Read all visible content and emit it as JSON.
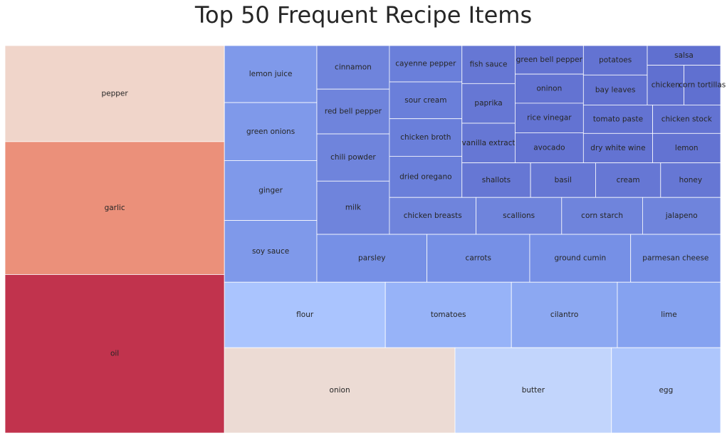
{
  "chart_data": {
    "type": "treemap",
    "title": "Top 50 Frequent Recipe Items",
    "items": [
      {
        "label": "oil",
        "value": 198,
        "color": "#c1334d"
      },
      {
        "label": "garlic",
        "value": 166,
        "color": "#eb907a"
      },
      {
        "label": "pepper",
        "value": 120,
        "color": "#f0d5ca"
      },
      {
        "label": "onion",
        "value": 112,
        "color": "#ecdbd4"
      },
      {
        "label": "butter",
        "value": 76,
        "color": "#c2d5fc"
      },
      {
        "label": "egg",
        "value": 53,
        "color": "#aec6fc"
      },
      {
        "label": "flour",
        "value": 60,
        "color": "#aac4fe"
      },
      {
        "label": "tomatoes",
        "value": 47,
        "color": "#97b3f8"
      },
      {
        "label": "cilantro",
        "value": 39.5,
        "color": "#8ca8f2"
      },
      {
        "label": "lime",
        "value": 38.5,
        "color": "#85a2f0"
      },
      {
        "label": "soy sauce",
        "value": 32.5,
        "color": "#7f99ea"
      },
      {
        "label": "ginger",
        "value": 31.5,
        "color": "#7f99ea"
      },
      {
        "label": "green onions",
        "value": 30.5,
        "color": "#7f99ea"
      },
      {
        "label": "lemon juice",
        "value": 30,
        "color": "#7f99ea"
      },
      {
        "label": "parsley",
        "value": 30,
        "color": "#7690e6"
      },
      {
        "label": "carrots",
        "value": 28,
        "color": "#7690e6"
      },
      {
        "label": "ground cumin",
        "value": 27.5,
        "color": "#7690e6"
      },
      {
        "label": "parmesan cheese",
        "value": 24.5,
        "color": "#7690e6"
      },
      {
        "label": "milk",
        "value": 22,
        "color": "#6f84dc"
      },
      {
        "label": "chili powder",
        "value": 19.5,
        "color": "#6f84dc"
      },
      {
        "label": "red bell pepper",
        "value": 18.5,
        "color": "#6f84dc"
      },
      {
        "label": "cinnamon",
        "value": 18,
        "color": "#6f84dc"
      },
      {
        "label": "chicken breasts",
        "value": 18.2,
        "color": "#6f84dc"
      },
      {
        "label": "scallions",
        "value": 18,
        "color": "#6f84dc"
      },
      {
        "label": "corn starch",
        "value": 17,
        "color": "#6f84dc"
      },
      {
        "label": "jalapeno",
        "value": 16.4,
        "color": "#6f84dc"
      },
      {
        "label": "dried oregano",
        "value": 17,
        "color": "#6a7fda"
      },
      {
        "label": "chicken broth",
        "value": 15.5,
        "color": "#6a7fda"
      },
      {
        "label": "sour cream",
        "value": 15.2,
        "color": "#6a7fda"
      },
      {
        "label": "cayenne pepper",
        "value": 15,
        "color": "#6a7fda"
      },
      {
        "label": "vanilla extract",
        "value": 12,
        "color": "#6677d4"
      },
      {
        "label": "paprika",
        "value": 12,
        "color": "#6677d4"
      },
      {
        "label": "fish sauce",
        "value": 11.5,
        "color": "#6677d4"
      },
      {
        "label": "shallots",
        "value": 13.5,
        "color": "#6677d4"
      },
      {
        "label": "basil",
        "value": 12.8,
        "color": "#6677d4"
      },
      {
        "label": "cream",
        "value": 12.8,
        "color": "#6677d4"
      },
      {
        "label": "honey",
        "value": 11.8,
        "color": "#6677d4"
      },
      {
        "label": "avocado",
        "value": 11.7,
        "color": "#6373d2"
      },
      {
        "label": "rice vinegar",
        "value": 11.5,
        "color": "#6373d2"
      },
      {
        "label": "oninon",
        "value": 11.3,
        "color": "#6373d2"
      },
      {
        "label": "green bell pepper",
        "value": 11.1,
        "color": "#6373d2"
      },
      {
        "label": "dry white wine",
        "value": 11.6,
        "color": "#6373d2"
      },
      {
        "label": "lemon",
        "value": 11.4,
        "color": "#6373d2"
      },
      {
        "label": "tomato paste",
        "value": 11.2,
        "color": "#6373d2"
      },
      {
        "label": "chicken stock",
        "value": 11,
        "color": "#6373d2"
      },
      {
        "label": "bay leaves",
        "value": 10.9,
        "color": "#6373d2"
      },
      {
        "label": "potatoes",
        "value": 10.7,
        "color": "#6373d2"
      },
      {
        "label": "chicken",
        "value": 8.3,
        "color": "#6070d0"
      },
      {
        "label": "corn tortillas",
        "value": 8.3,
        "color": "#6070d0"
      },
      {
        "label": "salsa",
        "value": 8.2,
        "color": "#6070d0"
      }
    ]
  }
}
